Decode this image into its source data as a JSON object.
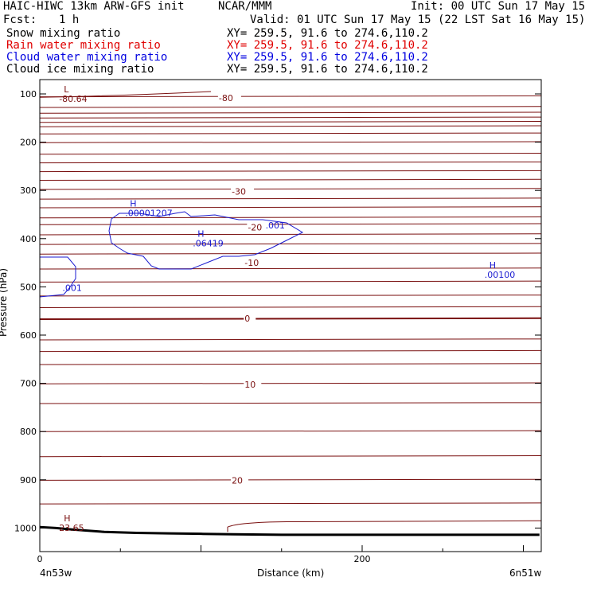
{
  "header": {
    "title_left": "HAIC-HIWC 13km ARW-GFS init",
    "center_name": "NCAR/MMM",
    "init_time": "Init: 00 UTC Sun 17 May 15",
    "forecast_label": "Fcst:",
    "forecast_value": "1 h",
    "valid_time": "Valid: 01 UTC Sun 17 May 15 (22 LST Sat 16 May 15)"
  },
  "fields": [
    {
      "name": "Snow mixing ratio",
      "xy": "XY= 259.5, 91.6 to 274.6,110.2",
      "color": "#000000"
    },
    {
      "name": "Rain water mixing ratio",
      "xy": "XY= 259.5, 91.6 to 274.6,110.2",
      "color": "#e00000"
    },
    {
      "name": "Cloud water mixing ratio",
      "xy": "XY= 259.5, 91.6 to 274.6,110.2",
      "color": "#0000e0"
    },
    {
      "name": "Cloud ice mixing ratio",
      "xy": "XY= 259.5, 91.6 to 274.6,110.2",
      "color": "#000000"
    }
  ],
  "chart_data": {
    "type": "contour",
    "xlabel": "Distance (km)",
    "ylabel": "Pressure (hPa)",
    "xlim": [
      0,
      310
    ],
    "ylim": [
      1050,
      75
    ],
    "x_ticks": [
      0,
      200
    ],
    "y_ticks": [
      100,
      200,
      300,
      400,
      500,
      600,
      700,
      800,
      900,
      1000
    ],
    "x_endpoints": {
      "left": "4n53w",
      "right": "6n51w"
    },
    "temperature_color": "#7a1010",
    "cloud_water_color": "#1a1ad0",
    "temperature_labels": [
      {
        "text": "-80",
        "x": 115,
        "p": 108
      },
      {
        "text": "-30",
        "x": 123,
        "p": 302
      },
      {
        "text": "-20",
        "x": 133,
        "p": 376
      },
      {
        "text": "-10",
        "x": 131,
        "p": 450
      },
      {
        "text": "0",
        "x": 131,
        "p": 565
      },
      {
        "text": "10",
        "x": 131,
        "p": 702
      },
      {
        "text": "20",
        "x": 123,
        "p": 901
      }
    ],
    "extrema": [
      {
        "mark": "L",
        "value": "-80.64",
        "x": 8,
        "p": 103,
        "field": "temperature"
      },
      {
        "mark": "H",
        "value": "23.65",
        "x": 8,
        "p": 993,
        "field": "temperature"
      },
      {
        "mark": "H",
        "value": ".00001207",
        "x": 49,
        "p": 340,
        "field": "cloud_water"
      },
      {
        "mark": "H",
        "value": ".06419",
        "x": 91,
        "p": 403,
        "field": "cloud_water"
      },
      {
        "mark": "H",
        "value": ".00100",
        "x": 272,
        "p": 468,
        "field": "cloud_water"
      }
    ],
    "cloud_water_labels": [
      {
        "text": ".001",
        "x": 143,
        "p": 372
      },
      {
        "text": ".001",
        "x": 17,
        "p": 502
      }
    ],
    "terrain_surface_hpa": [
      [
        0,
        998
      ],
      [
        10,
        1000
      ],
      [
        20,
        1003
      ],
      [
        40,
        1008
      ],
      [
        60,
        1010
      ],
      [
        80,
        1011
      ],
      [
        100,
        1012
      ],
      [
        120,
        1013
      ],
      [
        150,
        1014
      ],
      [
        200,
        1014
      ],
      [
        250,
        1014
      ],
      [
        310,
        1014
      ]
    ]
  }
}
